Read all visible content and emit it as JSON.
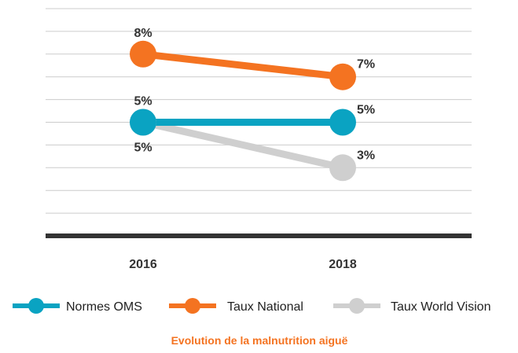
{
  "chart_data": {
    "type": "line",
    "categories": [
      "2016",
      "2018"
    ],
    "ylim": [
      0,
      10
    ],
    "grid": true,
    "legend": "bottom",
    "caption": "Evolution de la malnutrition aiguë",
    "caption_color": "#f47321",
    "series": [
      {
        "name": "Normes OMS",
        "values": [
          5,
          5
        ],
        "labels": [
          "",
          "5%"
        ],
        "color": "#0aa3c2"
      },
      {
        "name": "Taux National",
        "values": [
          8,
          7
        ],
        "labels": [
          "8%",
          "7%"
        ],
        "color": "#f47321"
      },
      {
        "name": "Taux World Vision",
        "values": [
          5,
          3
        ],
        "labels": [
          "5%",
          "3%"
        ],
        "color": "#cfcfcf"
      }
    ],
    "extra_labels": [
      {
        "category": 0,
        "value": 5,
        "text": "5%",
        "place": "below"
      }
    ]
  }
}
